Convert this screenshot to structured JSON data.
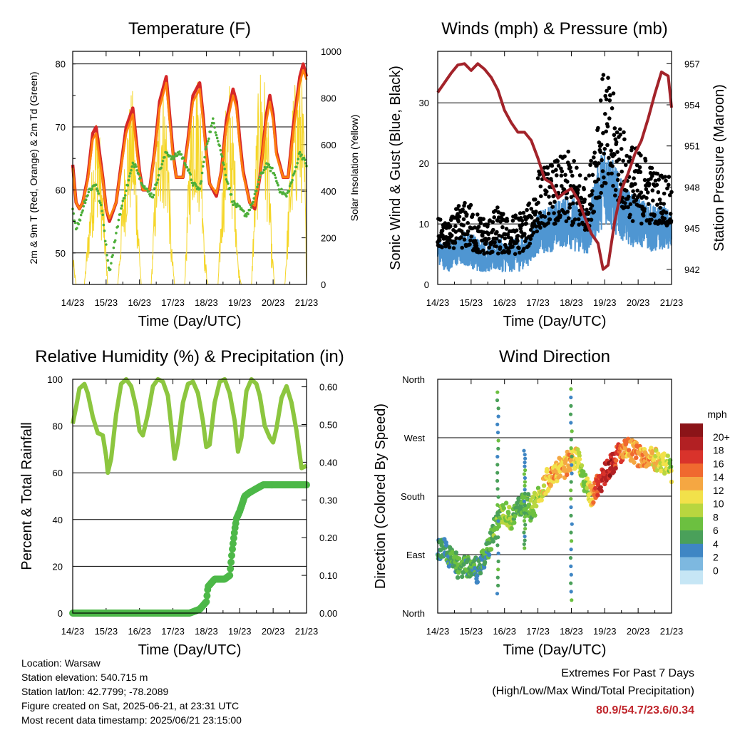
{
  "info": {
    "location": "Location: Warsaw",
    "elevation": "Station elevation: 540.715 m",
    "latlon": "Station lat/lon: 42.7799; -78.2089",
    "created": "Figure created on Sat, 2025-06-21, at 23:31 UTC",
    "recent": "Most recent data timestamp: 2025/06/21 23:15:00"
  },
  "extremes": {
    "title": "Extremes For Past 7 Days",
    "subtitle": "(High/Low/Max Wind/Total Precipitation)",
    "values": "80.9/54.7/23.6/0.34"
  },
  "chart_data": [
    {
      "type": "line",
      "title": "Temperature (F)",
      "xlabel": "Time (Day/UTC)",
      "ylabel": "2m & 9m T (Red, Orange) & 2m Td (Green)",
      "y2label": "Solar Insolation (Yellow)",
      "xticks": [
        "14/23",
        "15/23",
        "16/23",
        "17/23",
        "18/23",
        "19/23",
        "20/23",
        "21/23"
      ],
      "xlim": [
        0,
        7
      ],
      "ylim": [
        45,
        82
      ],
      "yticks": [
        50,
        60,
        70,
        80
      ],
      "y2lim": [
        0,
        1000
      ],
      "y2ticks": [
        0,
        200,
        400,
        600,
        800,
        1000
      ],
      "grid": true,
      "series": [
        {
          "color": "#d62728",
          "x": [
            0,
            0.1,
            0.2,
            0.3,
            0.45,
            0.6,
            0.7,
            0.8,
            0.9,
            1.0,
            1.1,
            1.3,
            1.45,
            1.6,
            1.8,
            1.9,
            2.0,
            2.1,
            2.3,
            2.45,
            2.6,
            2.8,
            2.9,
            3.0,
            3.1,
            3.3,
            3.45,
            3.6,
            3.8,
            3.9,
            4.0,
            4.1,
            4.3,
            4.45,
            4.6,
            4.8,
            4.9,
            5.0,
            5.1,
            5.3,
            5.45,
            5.6,
            5.8,
            5.9,
            6.0,
            6.1,
            6.3,
            6.45,
            6.6,
            6.8,
            6.9,
            7.0
          ],
          "y": [
            64,
            58,
            57,
            58,
            62,
            69,
            70,
            66,
            62,
            57,
            55,
            58,
            64,
            70,
            73,
            68,
            63,
            60,
            60,
            66,
            74,
            78,
            72,
            66,
            62,
            62,
            68,
            75,
            77,
            72,
            66,
            61,
            59,
            63,
            71,
            76,
            74,
            68,
            63,
            58,
            57,
            62,
            72,
            75,
            72,
            66,
            62,
            62,
            70,
            78,
            80,
            78
          ]
        },
        {
          "color": "#ff7f0e",
          "x": [
            0,
            0.1,
            0.2,
            0.3,
            0.45,
            0.6,
            0.7,
            0.8,
            0.9,
            1.0,
            1.1,
            1.3,
            1.45,
            1.6,
            1.8,
            1.9,
            2.0,
            2.1,
            2.3,
            2.45,
            2.6,
            2.8,
            2.9,
            3.0,
            3.1,
            3.3,
            3.45,
            3.6,
            3.8,
            3.9,
            4.0,
            4.1,
            4.3,
            4.45,
            4.6,
            4.8,
            4.9,
            5.0,
            5.1,
            5.3,
            5.45,
            5.6,
            5.8,
            5.9,
            6.0,
            6.1,
            6.3,
            6.45,
            6.6,
            6.8,
            6.9,
            7.0
          ],
          "y": [
            63.5,
            58,
            57,
            58,
            61.5,
            68,
            69,
            65,
            61.5,
            57,
            55.5,
            58,
            63.5,
            69,
            72,
            67,
            62.5,
            60,
            60,
            65.5,
            73,
            77,
            71,
            65.5,
            62,
            62,
            67.5,
            74,
            76,
            71,
            65.5,
            61,
            59.5,
            63,
            70,
            75,
            73,
            67,
            62.5,
            58,
            57.5,
            62,
            71,
            74,
            71,
            65.5,
            62,
            62,
            69,
            77,
            79,
            77.5
          ]
        },
        {
          "color": "#4daf3a",
          "x": [
            0,
            0.1,
            0.2,
            0.35,
            0.5,
            0.7,
            0.9,
            1.0,
            1.1,
            1.2,
            1.4,
            1.6,
            1.8,
            1.9,
            2.0,
            2.2,
            2.4,
            2.6,
            2.8,
            3.0,
            3.2,
            3.4,
            3.6,
            3.8,
            4.0,
            4.2,
            4.4,
            4.6,
            4.8,
            5.0,
            5.2,
            5.4,
            5.6,
            5.8,
            6.0,
            6.2,
            6.4,
            6.6,
            6.8,
            7.0
          ],
          "y": [
            57,
            54,
            55,
            58,
            60,
            61,
            56,
            51,
            47,
            50,
            56,
            60,
            64,
            64,
            62,
            60,
            59,
            63,
            66,
            65,
            66,
            64,
            61,
            60,
            67,
            71,
            67,
            62,
            58,
            57,
            56,
            58,
            62,
            64,
            63,
            60,
            59,
            62,
            66,
            64
          ]
        }
      ],
      "insolation": {
        "color": "#f5d629",
        "x": [
          0,
          0.1,
          0.35,
          0.55,
          0.65,
          0.75,
          0.95,
          1.05,
          1.35,
          1.5,
          1.65,
          1.8,
          1.95,
          2.05,
          2.35,
          2.5,
          2.6,
          2.7,
          2.85,
          2.95,
          3.05,
          3.35,
          3.5,
          3.6,
          3.7,
          3.85,
          3.95,
          4.05,
          4.35,
          4.5,
          4.6,
          4.7,
          4.85,
          4.95,
          5.05,
          5.35,
          5.5,
          5.6,
          5.7,
          5.85,
          5.95,
          6.05,
          6.35,
          6.5,
          6.6,
          6.7,
          6.85,
          6.95,
          7.0
        ],
        "y": [
          150,
          0,
          0,
          450,
          700,
          800,
          300,
          0,
          0,
          420,
          760,
          850,
          350,
          0,
          0,
          600,
          870,
          900,
          720,
          200,
          0,
          0,
          650,
          920,
          950,
          800,
          150,
          0,
          0,
          550,
          820,
          900,
          600,
          100,
          0,
          0,
          680,
          960,
          980,
          700,
          200,
          0,
          0,
          520,
          850,
          900,
          950,
          600,
          0
        ]
      },
      "legend": "none"
    },
    {
      "type": "scatter",
      "title": "Winds (mph) & Pressure (mb)",
      "xlabel": "Time (Day/UTC)",
      "ylabel": "Sonic Wind & Gust (Blue, Black)",
      "y2label": "Station Pressure (Maroon)",
      "xticks": [
        "14/23",
        "15/23",
        "16/23",
        "17/23",
        "18/23",
        "19/23",
        "20/23",
        "21/23"
      ],
      "xlim": [
        0,
        7
      ],
      "ylim": [
        0,
        38.5
      ],
      "yticks": [
        0,
        10,
        20,
        30
      ],
      "y2lim": [
        940.9,
        957.9
      ],
      "y2ticks": [
        942,
        945,
        948,
        951,
        954,
        957
      ],
      "grid": true,
      "gust_envelope": {
        "x": [
          0,
          0.3,
          0.6,
          0.9,
          1.2,
          1.5,
          1.8,
          2.1,
          2.4,
          2.7,
          3.0,
          3.3,
          3.6,
          3.9,
          4.2,
          4.5,
          4.8,
          5.0,
          5.3,
          5.6,
          5.9,
          6.2,
          6.5,
          6.8,
          7.0
        ],
        "hi": [
          11,
          10,
          13,
          14,
          12,
          11,
          13,
          11,
          12,
          13,
          19,
          20,
          21,
          22,
          20,
          17,
          32,
          36,
          31,
          25,
          23,
          22,
          19,
          19,
          17
        ],
        "lo": [
          6,
          6,
          6,
          6,
          5,
          5,
          5,
          5,
          5,
          6,
          9,
          10,
          10,
          10,
          9,
          9,
          14,
          16,
          14,
          12,
          10,
          10,
          10,
          10,
          9
        ]
      },
      "wind_envelope": {
        "x": [
          0,
          0.3,
          0.6,
          0.9,
          1.2,
          1.5,
          1.8,
          2.1,
          2.4,
          2.7,
          3.0,
          3.3,
          3.6,
          3.9,
          4.2,
          4.5,
          4.8,
          5.0,
          5.3,
          5.6,
          5.9,
          6.2,
          6.5,
          6.8,
          7.0
        ],
        "hi": [
          8,
          7,
          8,
          9,
          8,
          7,
          8,
          7,
          8,
          8,
          12,
          13,
          14,
          15,
          14,
          12,
          20,
          24,
          20,
          16,
          15,
          14,
          13,
          13,
          12
        ],
        "lo": [
          3,
          2,
          3,
          3,
          2,
          2,
          2,
          2,
          2,
          3,
          5,
          5,
          6,
          6,
          5,
          5,
          8,
          10,
          8,
          7,
          6,
          6,
          5,
          6,
          5
        ]
      },
      "pressure": {
        "color": "#a3232a",
        "x": [
          0,
          0.2,
          0.4,
          0.6,
          0.8,
          1.0,
          1.2,
          1.4,
          1.6,
          1.8,
          2.0,
          2.2,
          2.4,
          2.6,
          2.8,
          3.0,
          3.2,
          3.4,
          3.6,
          3.8,
          4.0,
          4.2,
          4.4,
          4.6,
          4.8,
          4.95,
          5.1,
          5.3,
          5.5,
          5.7,
          5.9,
          6.1,
          6.3,
          6.5,
          6.7,
          6.9,
          7.0
        ],
        "y": [
          954.9,
          955.6,
          956.3,
          956.9,
          957.0,
          956.5,
          957.0,
          956.6,
          956.0,
          955.1,
          953.6,
          952.7,
          952.0,
          952.0,
          951.4,
          950.1,
          948.6,
          948.3,
          947.2,
          947.6,
          947.9,
          947.1,
          945.8,
          944.6,
          943.9,
          942.0,
          942.3,
          945.5,
          947.8,
          949.0,
          950.4,
          951.4,
          953.0,
          954.8,
          956.4,
          956.1,
          953.8
        ]
      },
      "legend": "none"
    },
    {
      "type": "line",
      "title": "Relative Humidity (%) & Precipitation (in)",
      "xlabel": "Time (Day/UTC)",
      "ylabel": "Percent & Total Rainfall",
      "xticks": [
        "14/23",
        "15/23",
        "16/23",
        "17/23",
        "18/23",
        "19/23",
        "20/23",
        "21/23"
      ],
      "xlim": [
        0,
        7
      ],
      "ylim": [
        0,
        100
      ],
      "yticks": [
        0,
        20,
        40,
        60,
        80,
        100
      ],
      "y2lim": [
        0,
        0.62
      ],
      "y2ticks": [
        0.0,
        0.1,
        0.2,
        0.3,
        0.4,
        0.5,
        0.6
      ],
      "grid": true,
      "series": [
        {
          "name": "Relative Humidity",
          "color": "#8cc63f",
          "x": [
            0,
            0.1,
            0.2,
            0.35,
            0.45,
            0.6,
            0.75,
            0.9,
            1.0,
            1.05,
            1.15,
            1.3,
            1.45,
            1.6,
            1.75,
            1.9,
            2.0,
            2.1,
            2.25,
            2.4,
            2.55,
            2.7,
            2.85,
            2.95,
            3.05,
            3.15,
            3.3,
            3.45,
            3.6,
            3.75,
            3.9,
            4.0,
            4.1,
            4.25,
            4.4,
            4.55,
            4.7,
            4.85,
            4.95,
            5.05,
            5.2,
            5.35,
            5.5,
            5.6,
            5.75,
            5.9,
            6.0,
            6.1,
            6.25,
            6.4,
            6.55,
            6.7,
            6.85,
            7.0
          ],
          "y": [
            81,
            88,
            96,
            98,
            94,
            84,
            77,
            76,
            67,
            60,
            66,
            85,
            98,
            100,
            97,
            88,
            78,
            76,
            85,
            97,
            100,
            99,
            93,
            80,
            66,
            73,
            90,
            98,
            99,
            94,
            82,
            71,
            72,
            90,
            99,
            100,
            94,
            82,
            69,
            75,
            95,
            100,
            98,
            93,
            80,
            75,
            73,
            79,
            92,
            97,
            90,
            78,
            62,
            63
          ]
        },
        {
          "name": "Total Rainfall",
          "color": "#4db848",
          "x": [
            0,
            3.5,
            3.8,
            3.9,
            4.0,
            4.05,
            4.25,
            4.55,
            4.7,
            4.78,
            4.85,
            4.9,
            5.0,
            5.15,
            5.3,
            5.5,
            5.7,
            5.9,
            6.2,
            6.5,
            7.0
          ],
          "y": [
            0,
            0,
            0.01,
            0.02,
            0.03,
            0.07,
            0.09,
            0.09,
            0.1,
            0.17,
            0.22,
            0.25,
            0.27,
            0.31,
            0.32,
            0.33,
            0.34,
            0.34,
            0.34,
            0.34,
            0.34
          ]
        }
      ],
      "legend": "none"
    },
    {
      "type": "scatter",
      "title": "Wind Direction",
      "xlabel": "Time (Day/UTC)",
      "ylabel": "Direction (Colored By Speed)",
      "xticks": [
        "14/23",
        "15/23",
        "16/23",
        "17/23",
        "18/23",
        "19/23",
        "20/23",
        "21/23"
      ],
      "xlim": [
        0,
        7
      ],
      "yticks": [
        "North",
        "East",
        "South",
        "West",
        "North"
      ],
      "ylim": [
        0,
        360
      ],
      "grid": true,
      "colorbar_label": "mph",
      "colorbar_ticks": [
        "0",
        "2",
        "4",
        "6",
        "8",
        "10",
        "12",
        "14",
        "16",
        "18",
        "20+"
      ],
      "colorbar_colors": [
        "#c6e6f5",
        "#7db8e0",
        "#3f86c4",
        "#4aa05a",
        "#6cc040",
        "#b8d63f",
        "#f2e14a",
        "#f5a742",
        "#f0692f",
        "#d9332b",
        "#b22023",
        "#8b1418"
      ],
      "direction_track": {
        "x": [
          0,
          0.2,
          0.4,
          0.6,
          0.8,
          1.0,
          1.2,
          1.4,
          1.6,
          1.8,
          2.0,
          2.2,
          2.4,
          2.6,
          2.8,
          3.0,
          3.2,
          3.4,
          3.6,
          3.8,
          4.0,
          4.2,
          4.4,
          4.6,
          4.8,
          5.0,
          5.2,
          5.4,
          5.6,
          5.8,
          6.0,
          6.2,
          6.4,
          6.6,
          6.8,
          7.0
        ],
        "y": [
          95,
          100,
          85,
          70,
          75,
          70,
          65,
          85,
          115,
          140,
          160,
          140,
          165,
          170,
          160,
          175,
          200,
          215,
          220,
          225,
          235,
          240,
          200,
          180,
          200,
          215,
          230,
          245,
          250,
          250,
          245,
          240,
          240,
          235,
          230,
          220
        ],
        "speed": [
          4,
          4,
          5,
          6,
          6,
          5,
          4,
          5,
          6,
          7,
          8,
          8,
          6,
          6,
          7,
          9,
          11,
          13,
          12,
          13,
          14,
          10,
          7,
          12,
          17,
          18,
          19,
          16,
          14,
          13,
          14,
          13,
          12,
          11,
          10,
          9
        ]
      },
      "legend": "colorbar right"
    }
  ]
}
